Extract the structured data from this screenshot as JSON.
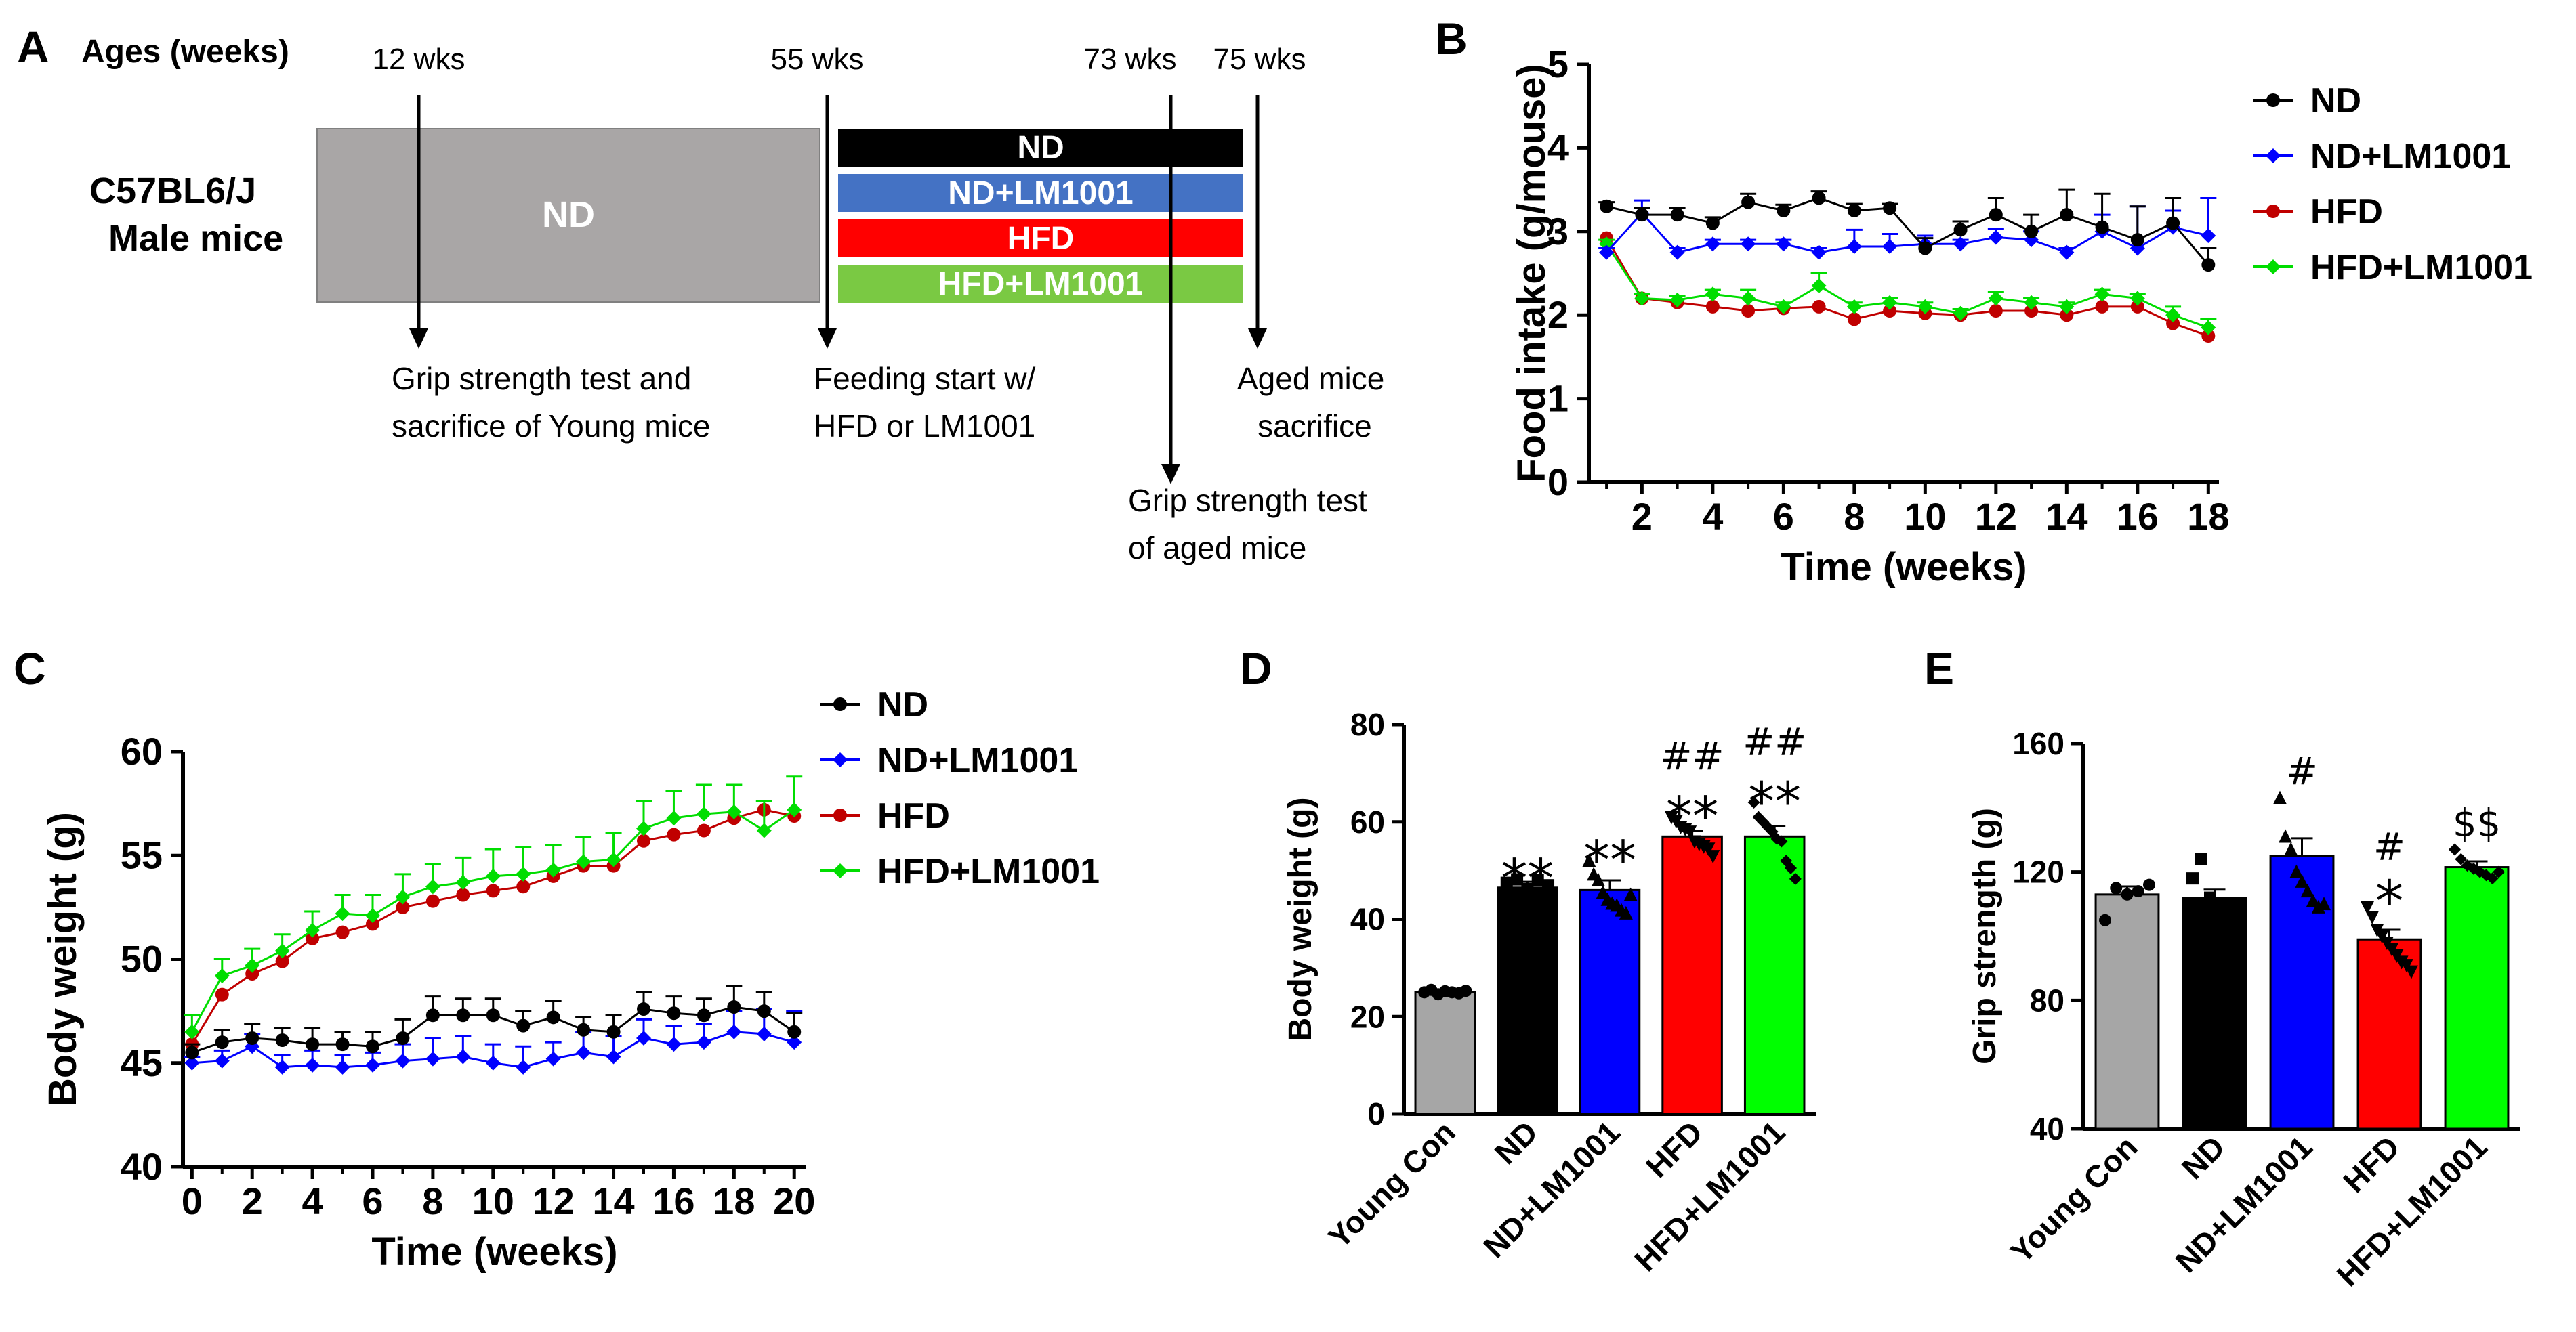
{
  "colors": {
    "nd": "#000000",
    "nd_lm": "#0000ff",
    "hfd": "#c00000",
    "hfd_lm": "#00dd00",
    "bar_young": "#a6a6a6",
    "bar_nd": "#000000",
    "bar_nd_lm": "#0000ff",
    "bar_hfd": "#ff0000",
    "bar_hfd_lm": "#00ff00",
    "box_nd_bg": "#a9a6a6",
    "box_black": "#000000",
    "box_blue": "#4472c4",
    "box_red": "#ff0000",
    "box_green": "#7ac943"
  },
  "panel_a": {
    "letter": "A",
    "ages_label": "Ages (weeks)",
    "mice_line1": "C57BL6/J",
    "mice_line2": "Male mice",
    "nd_box_label": "ND",
    "timepoints": [
      "12 wks",
      "55 wks",
      "73 wks",
      "75 wks"
    ],
    "groups": [
      "ND",
      "ND+LM1001",
      "HFD",
      "HFD+LM1001"
    ],
    "note1_line1": "Grip strength test and",
    "note1_line2": "sacrifice of Young mice",
    "note2_line1": "Feeding start w/",
    "note2_line2": "HFD or LM1001",
    "note3_line1": "Aged mice",
    "note3_line2": "sacrifice",
    "note4_line1": "Grip strength test",
    "note4_line2": "of aged mice"
  },
  "chart_data": [
    {
      "panel": "B",
      "type": "line",
      "ylabel": "Food intake (g/mouse)",
      "xlabel": "Time (weeks)",
      "ylim": [
        0,
        5
      ],
      "yticks": [
        "0",
        "1",
        "2",
        "3",
        "4",
        "5"
      ],
      "xlim": [
        0.5,
        18.3
      ],
      "xticks": [
        "2",
        "4",
        "6",
        "8",
        "10",
        "12",
        "14",
        "16",
        "18"
      ],
      "x": [
        1,
        2,
        3,
        4,
        5,
        6,
        7,
        8,
        9,
        10,
        11,
        12,
        13,
        14,
        15,
        16,
        17,
        18
      ],
      "series": [
        {
          "name": "ND",
          "values": [
            3.3,
            3.2,
            3.2,
            3.1,
            3.35,
            3.25,
            3.4,
            3.25,
            3.28,
            2.8,
            3.02,
            3.2,
            3.0,
            3.2,
            3.05,
            2.9,
            3.1,
            2.6
          ],
          "err": [
            0.05,
            0.08,
            0.08,
            0.07,
            0.1,
            0.07,
            0.08,
            0.08,
            0.05,
            0.12,
            0.1,
            0.2,
            0.2,
            0.3,
            0.4,
            0.4,
            0.3,
            0.2
          ]
        },
        {
          "name": "ND+LM1001",
          "values": [
            2.75,
            3.22,
            2.75,
            2.85,
            2.85,
            2.85,
            2.75,
            2.82,
            2.82,
            2.85,
            2.85,
            2.93,
            2.9,
            2.75,
            3.0,
            2.8,
            3.05,
            2.95
          ],
          "err": [
            0.05,
            0.15,
            0.05,
            0.05,
            0.05,
            0.05,
            0.05,
            0.2,
            0.15,
            0.1,
            0.05,
            0.1,
            0.1,
            0.05,
            0.2,
            0.5,
            0.2,
            0.45
          ]
        },
        {
          "name": "HFD",
          "values": [
            2.92,
            2.2,
            2.15,
            2.1,
            2.05,
            2.08,
            2.1,
            1.95,
            2.05,
            2.02,
            2.0,
            2.05,
            2.05,
            2.0,
            2.1,
            2.1,
            1.9,
            1.75
          ]
        },
        {
          "name": "HFD+LM1001",
          "values": [
            2.85,
            2.2,
            2.18,
            2.25,
            2.2,
            2.1,
            2.35,
            2.1,
            2.15,
            2.1,
            2.02,
            2.2,
            2.15,
            2.1,
            2.25,
            2.2,
            2.0,
            1.85
          ],
          "err": [
            0.05,
            0.05,
            0.05,
            0.05,
            0.1,
            0.05,
            0.15,
            0.05,
            0.05,
            0.05,
            0.05,
            0.08,
            0.05,
            0.05,
            0.05,
            0.05,
            0.1,
            0.1
          ]
        }
      ]
    },
    {
      "panel": "C",
      "type": "line",
      "ylabel": "Body weight  (g)",
      "xlabel": "Time (weeks)",
      "ylim": [
        40,
        60
      ],
      "yticks": [
        "40",
        "45",
        "50",
        "55",
        "60"
      ],
      "xlim": [
        -0.3,
        20.4
      ],
      "xticks": [
        "0",
        "2",
        "4",
        "6",
        "8",
        "10",
        "12",
        "14",
        "16",
        "18",
        "20"
      ],
      "x": [
        0,
        1,
        2,
        3,
        4,
        5,
        6,
        7,
        8,
        9,
        10,
        11,
        12,
        13,
        14,
        15,
        16,
        17,
        18,
        19,
        20
      ],
      "series": [
        {
          "name": "ND",
          "values": [
            45.5,
            46,
            46.2,
            46.1,
            45.9,
            45.9,
            45.8,
            46.2,
            47.3,
            47.3,
            47.3,
            46.8,
            47.2,
            46.6,
            46.5,
            47.6,
            47.4,
            47.3,
            47.7,
            47.5,
            46.5
          ],
          "err": [
            0.4,
            0.6,
            0.7,
            0.6,
            0.8,
            0.6,
            0.7,
            0.9,
            0.9,
            0.8,
            0.8,
            0.7,
            0.8,
            0.6,
            0.8,
            0.8,
            0.8,
            0.8,
            1.0,
            0.9,
            0.9
          ]
        },
        {
          "name": "ND+LM1001",
          "values": [
            45,
            45.1,
            45.8,
            44.8,
            44.9,
            44.8,
            44.9,
            45.1,
            45.2,
            45.3,
            45,
            44.8,
            45.2,
            45.5,
            45.3,
            46.2,
            45.9,
            46,
            46.5,
            46.4,
            46
          ],
          "err": [
            0.3,
            0.5,
            0.6,
            0.6,
            0.7,
            0.6,
            0.6,
            0.8,
            1.0,
            1.0,
            0.9,
            1.0,
            0.8,
            1.0,
            1.0,
            0.9,
            0.9,
            0.9,
            1.0,
            1.2,
            1.5
          ]
        },
        {
          "name": "HFD",
          "values": [
            45.9,
            48.3,
            49.3,
            49.9,
            51,
            51.3,
            51.7,
            52.5,
            52.8,
            53.1,
            53.3,
            53.5,
            54,
            54.5,
            54.5,
            55.7,
            56,
            56.2,
            56.8,
            57.2,
            56.9
          ]
        },
        {
          "name": "HFD+LM1001",
          "values": [
            46.5,
            49.2,
            49.7,
            50.4,
            51.4,
            52.2,
            52.1,
            53,
            53.5,
            53.7,
            54,
            54.1,
            54.3,
            54.7,
            54.8,
            56.3,
            56.8,
            57,
            57.1,
            56.2,
            57.2
          ],
          "err": [
            0.8,
            0.8,
            0.8,
            0.8,
            0.9,
            0.9,
            1.0,
            1.1,
            1.1,
            1.2,
            1.3,
            1.3,
            1.2,
            1.2,
            1.3,
            1.3,
            1.3,
            1.4,
            1.3,
            1.4,
            1.6
          ]
        }
      ]
    },
    {
      "panel": "D",
      "type": "bar",
      "ylabel": "Body weight  (g)",
      "ylim": [
        0,
        80
      ],
      "yticks": [
        "0",
        "20",
        "40",
        "60",
        "80"
      ],
      "categories": [
        "Young Con",
        "ND",
        "ND+LM1001",
        "HFD",
        "HFD+LM1001"
      ],
      "values": [
        25,
        46.5,
        46,
        57,
        57
      ],
      "err": [
        0.5,
        1.2,
        2,
        1.2,
        2.2
      ],
      "points": [
        [
          25,
          25.5,
          24.6,
          25.2,
          25,
          24.8,
          25.3
        ],
        [
          47.5,
          48.2,
          46.2,
          48,
          47
        ],
        [
          52,
          49.2,
          48,
          45.5,
          44,
          43.2,
          42.8,
          41.8,
          41.2,
          45
        ],
        [
          61,
          60.2,
          59,
          58.5,
          58,
          56,
          55.5,
          55,
          54.5,
          53
        ],
        [
          64,
          61,
          60,
          59,
          58,
          56.5,
          56,
          52,
          50.5,
          48.3
        ]
      ],
      "sig_top": [
        "",
        "",
        "",
        "##",
        "##"
      ],
      "sig_bottom": [
        "",
        "**",
        "**",
        "**",
        "**"
      ]
    },
    {
      "panel": "E",
      "type": "bar",
      "ylabel": "Grip strength (g)",
      "ylim": [
        40,
        160
      ],
      "yticks": [
        "40",
        "80",
        "120",
        "160"
      ],
      "categories": [
        "Young Con",
        "ND",
        "ND+LM1001",
        "HFD",
        "HFD+LM1001"
      ],
      "values": [
        113,
        112,
        125,
        99,
        121.5
      ],
      "err": [
        2.5,
        2.5,
        5.5,
        3,
        1.8
      ],
      "points": [
        [
          105,
          115,
          113,
          114,
          116
        ],
        [
          118,
          124,
          112,
          110,
          109,
          107
        ],
        [
          143,
          131,
          127,
          120,
          117,
          114,
          111,
          109,
          110
        ],
        [
          109,
          106,
          102,
          100,
          98,
          96,
          94,
          92,
          91,
          89
        ],
        [
          127,
          124,
          122,
          121,
          120,
          119,
          118,
          120
        ]
      ],
      "sig_top": [
        "",
        "",
        "#",
        "#",
        "$$"
      ],
      "sig_bottom": [
        "",
        "",
        "",
        "*",
        ""
      ]
    }
  ],
  "panel_letters": {
    "b": "B",
    "c": "C",
    "d": "D",
    "e": "E"
  }
}
